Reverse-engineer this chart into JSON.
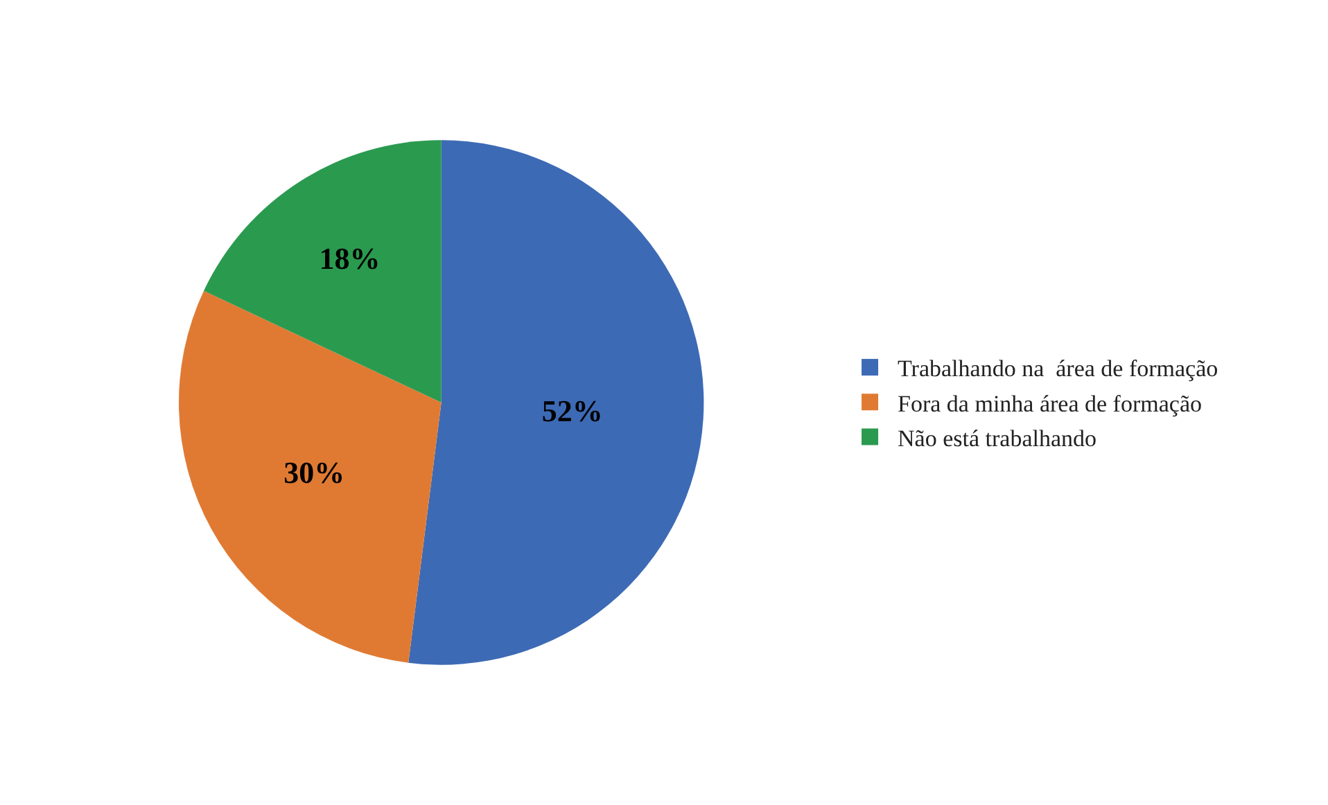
{
  "chart_data": {
    "type": "pie",
    "categories": [
      "Trabalhando na  área de formação",
      "Fora da minha área de formação",
      "Não está trabalhando"
    ],
    "values": [
      52,
      30,
      18
    ],
    "value_labels": [
      "52%",
      "30%",
      "18%"
    ],
    "colors": [
      "#3d6ab5",
      "#e07a33",
      "#2a9a4f"
    ],
    "legend": "right"
  }
}
